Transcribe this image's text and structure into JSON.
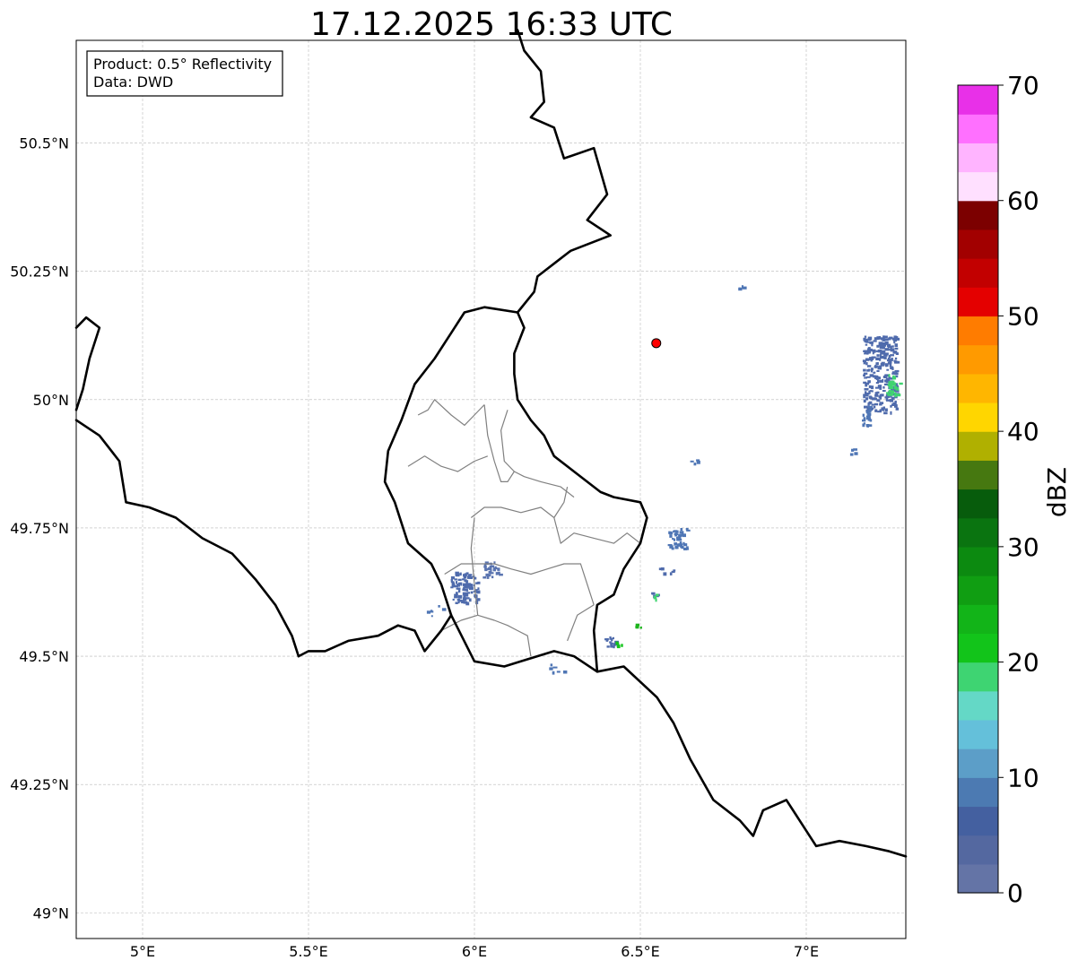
{
  "title": "17.12.2025 16:33 UTC",
  "info_box": {
    "product": "Product: 0.5° Reflectivity",
    "data_source": "Data: DWD"
  },
  "map": {
    "lon_range": [
      4.8,
      7.3
    ],
    "lat_range": [
      48.95,
      50.7
    ],
    "x_ticks": [
      {
        "value": 5.0,
        "label": "5°E"
      },
      {
        "value": 5.5,
        "label": "5.5°E"
      },
      {
        "value": 6.0,
        "label": "6°E"
      },
      {
        "value": 6.5,
        "label": "6.5°E"
      },
      {
        "value": 7.0,
        "label": "7°E"
      }
    ],
    "y_ticks": [
      {
        "value": 49.0,
        "label": "49°N"
      },
      {
        "value": 49.25,
        "label": "49.25°N"
      },
      {
        "value": 49.5,
        "label": "49.5°N"
      },
      {
        "value": 49.75,
        "label": "49.75°N"
      },
      {
        "value": 50.0,
        "label": "50°N"
      },
      {
        "value": 50.25,
        "label": "50.25°N"
      },
      {
        "value": 50.5,
        "label": "50.5°N"
      }
    ],
    "radar_site": {
      "lon": 6.548,
      "lat": 50.11,
      "color": "#ff0000"
    },
    "borders": [
      [
        [
          6.13,
          50.72
        ],
        [
          6.15,
          50.68
        ],
        [
          6.2,
          50.64
        ],
        [
          6.21,
          50.58
        ],
        [
          6.17,
          50.55
        ],
        [
          6.24,
          50.53
        ],
        [
          6.27,
          50.47
        ],
        [
          6.36,
          50.49
        ],
        [
          6.4,
          50.4
        ],
        [
          6.34,
          50.35
        ],
        [
          6.41,
          50.32
        ],
        [
          6.29,
          50.29
        ],
        [
          6.25,
          50.27
        ],
        [
          6.19,
          50.24
        ],
        [
          6.18,
          50.21
        ],
        [
          6.13,
          50.17
        ],
        [
          6.15,
          50.14
        ],
        [
          6.12,
          50.09
        ],
        [
          6.12,
          50.05
        ],
        [
          6.13,
          50.0
        ],
        [
          6.17,
          49.96
        ],
        [
          6.21,
          49.93
        ],
        [
          6.24,
          49.89
        ],
        [
          6.3,
          49.86
        ],
        [
          6.38,
          49.82
        ],
        [
          6.42,
          49.81
        ],
        [
          6.5,
          49.8
        ],
        [
          6.52,
          49.77
        ],
        [
          6.5,
          49.72
        ],
        [
          6.45,
          49.67
        ],
        [
          6.42,
          49.62
        ],
        [
          6.37,
          49.6
        ],
        [
          6.36,
          49.55
        ],
        [
          6.37,
          49.47
        ]
      ],
      [
        [
          6.13,
          50.17
        ],
        [
          6.03,
          50.18
        ],
        [
          5.97,
          50.17
        ],
        [
          5.93,
          50.13
        ],
        [
          5.88,
          50.08
        ],
        [
          5.82,
          50.03
        ],
        [
          5.78,
          49.96
        ],
        [
          5.74,
          49.9
        ],
        [
          5.73,
          49.84
        ],
        [
          5.76,
          49.8
        ],
        [
          5.8,
          49.72
        ],
        [
          5.87,
          49.68
        ],
        [
          5.9,
          49.64
        ],
        [
          5.93,
          49.58
        ],
        [
          5.9,
          49.55
        ],
        [
          5.85,
          49.51
        ],
        [
          5.82,
          49.55
        ],
        [
          5.77,
          49.56
        ],
        [
          5.71,
          49.54
        ],
        [
          5.62,
          49.53
        ],
        [
          5.55,
          49.51
        ],
        [
          5.5,
          49.51
        ],
        [
          5.47,
          49.5
        ]
      ],
      [
        [
          4.8,
          49.96
        ],
        [
          4.87,
          49.93
        ],
        [
          4.93,
          49.88
        ],
        [
          4.95,
          49.8
        ],
        [
          5.02,
          49.79
        ],
        [
          5.1,
          49.77
        ],
        [
          5.18,
          49.73
        ],
        [
          5.27,
          49.7
        ],
        [
          5.34,
          49.65
        ],
        [
          5.4,
          49.6
        ],
        [
          5.45,
          49.54
        ],
        [
          5.47,
          49.5
        ]
      ],
      [
        [
          4.8,
          50.14
        ],
        [
          4.83,
          50.16
        ],
        [
          4.87,
          50.14
        ],
        [
          4.84,
          50.08
        ],
        [
          4.82,
          50.02
        ],
        [
          4.8,
          49.98
        ]
      ],
      [
        [
          5.93,
          49.58
        ],
        [
          6.0,
          49.49
        ],
        [
          6.09,
          49.48
        ],
        [
          6.14,
          49.49
        ],
        [
          6.24,
          49.51
        ],
        [
          6.3,
          49.5
        ],
        [
          6.37,
          49.47
        ],
        [
          6.45,
          49.48
        ],
        [
          6.55,
          49.42
        ],
        [
          6.6,
          49.37
        ],
        [
          6.65,
          49.3
        ],
        [
          6.72,
          49.22
        ],
        [
          6.8,
          49.18
        ],
        [
          6.84,
          49.15
        ],
        [
          6.87,
          49.2
        ],
        [
          6.94,
          49.22
        ],
        [
          6.98,
          49.18
        ],
        [
          7.03,
          49.13
        ],
        [
          7.1,
          49.14
        ],
        [
          7.18,
          49.13
        ],
        [
          7.25,
          49.12
        ],
        [
          7.3,
          49.11
        ]
      ]
    ],
    "cantons": [
      [
        [
          6.03,
          49.99
        ],
        [
          6.0,
          49.97
        ],
        [
          5.97,
          49.95
        ],
        [
          5.93,
          49.97
        ],
        [
          5.88,
          50.0
        ],
        [
          5.86,
          49.98
        ],
        [
          5.83,
          49.97
        ]
      ],
      [
        [
          6.03,
          49.99
        ],
        [
          6.04,
          49.93
        ],
        [
          6.06,
          49.88
        ],
        [
          6.08,
          49.84
        ],
        [
          6.1,
          49.84
        ],
        [
          6.12,
          49.86
        ],
        [
          6.15,
          49.85
        ],
        [
          6.2,
          49.84
        ],
        [
          6.26,
          49.83
        ],
        [
          6.3,
          49.81
        ]
      ],
      [
        [
          6.1,
          49.98
        ],
        [
          6.08,
          49.94
        ],
        [
          6.09,
          49.88
        ],
        [
          6.12,
          49.86
        ]
      ],
      [
        [
          5.8,
          49.87
        ],
        [
          5.85,
          49.89
        ],
        [
          5.9,
          49.87
        ],
        [
          5.95,
          49.86
        ],
        [
          6.0,
          49.88
        ],
        [
          6.04,
          49.89
        ]
      ],
      [
        [
          5.99,
          49.77
        ],
        [
          6.03,
          49.79
        ],
        [
          6.08,
          49.79
        ],
        [
          6.14,
          49.78
        ],
        [
          6.2,
          49.79
        ],
        [
          6.24,
          49.77
        ],
        [
          6.27,
          49.8
        ],
        [
          6.28,
          49.83
        ]
      ],
      [
        [
          6.24,
          49.77
        ],
        [
          6.26,
          49.72
        ],
        [
          6.3,
          49.74
        ],
        [
          6.36,
          49.73
        ],
        [
          6.42,
          49.72
        ],
        [
          6.46,
          49.74
        ],
        [
          6.5,
          49.72
        ]
      ],
      [
        [
          6.0,
          49.77
        ],
        [
          5.99,
          49.71
        ],
        [
          6.0,
          49.64
        ],
        [
          6.01,
          49.58
        ]
      ],
      [
        [
          5.91,
          49.66
        ],
        [
          5.96,
          49.68
        ],
        [
          6.0,
          49.68
        ],
        [
          6.06,
          49.68
        ],
        [
          6.11,
          49.67
        ],
        [
          6.17,
          49.66
        ],
        [
          6.22,
          49.67
        ],
        [
          6.27,
          49.68
        ],
        [
          6.32,
          49.68
        ],
        [
          6.36,
          49.6
        ]
      ],
      [
        [
          6.36,
          49.6
        ],
        [
          6.31,
          49.58
        ],
        [
          6.28,
          49.53
        ]
      ],
      [
        [
          6.01,
          49.58
        ],
        [
          6.06,
          49.57
        ],
        [
          6.1,
          49.56
        ],
        [
          6.13,
          49.55
        ],
        [
          6.16,
          49.54
        ],
        [
          6.17,
          49.5
        ]
      ],
      [
        [
          5.9,
          49.55
        ],
        [
          5.96,
          49.57
        ],
        [
          6.01,
          49.58
        ]
      ]
    ],
    "echoes": [
      {
        "lon": 5.97,
        "lat": 49.635,
        "w": 0.085,
        "h": 0.06,
        "color": "#4f6bac",
        "shape": "rain"
      },
      {
        "lon": 6.05,
        "lat": 49.67,
        "w": 0.05,
        "h": 0.03,
        "color": "#5a74b0",
        "shape": "rain"
      },
      {
        "lon": 5.88,
        "lat": 49.59,
        "w": 0.05,
        "h": 0.02,
        "color": "#4f76b5",
        "shape": "streak"
      },
      {
        "lon": 6.61,
        "lat": 49.73,
        "w": 0.06,
        "h": 0.04,
        "color": "#4f76b5",
        "shape": "rain"
      },
      {
        "lon": 6.58,
        "lat": 49.67,
        "w": 0.05,
        "h": 0.015,
        "color": "#4f6bac",
        "shape": "streak"
      },
      {
        "lon": 6.53,
        "lat": 49.62,
        "w": 0.04,
        "h": 0.015,
        "color": "#4f6bac",
        "shape": "streak"
      },
      {
        "lon": 6.54,
        "lat": 49.617,
        "w": 0.02,
        "h": 0.01,
        "color": "#3fd470",
        "shape": "streak"
      },
      {
        "lon": 6.49,
        "lat": 49.56,
        "w": 0.02,
        "h": 0.008,
        "color": "#1db41d",
        "shape": "streak"
      },
      {
        "lon": 6.41,
        "lat": 49.53,
        "w": 0.05,
        "h": 0.02,
        "color": "#4f6bac",
        "shape": "rain"
      },
      {
        "lon": 6.43,
        "lat": 49.525,
        "w": 0.03,
        "h": 0.008,
        "color": "#12c41a",
        "shape": "streak"
      },
      {
        "lon": 6.25,
        "lat": 49.48,
        "w": 0.05,
        "h": 0.02,
        "color": "#4f76b5",
        "shape": "streak"
      },
      {
        "lon": 6.66,
        "lat": 49.88,
        "w": 0.02,
        "h": 0.008,
        "color": "#4f76b5",
        "shape": "streak"
      },
      {
        "lon": 6.8,
        "lat": 50.22,
        "w": 0.015,
        "h": 0.006,
        "color": "#4f76b5",
        "shape": "streak"
      },
      {
        "lon": 7.22,
        "lat": 50.05,
        "w": 0.1,
        "h": 0.15,
        "color": "#4f6bac",
        "shape": "rain"
      },
      {
        "lon": 7.26,
        "lat": 50.03,
        "w": 0.04,
        "h": 0.04,
        "color": "#3fd470",
        "shape": "rain"
      },
      {
        "lon": 7.18,
        "lat": 49.97,
        "w": 0.03,
        "h": 0.04,
        "color": "#4f76b5",
        "shape": "rain"
      },
      {
        "lon": 7.14,
        "lat": 49.9,
        "w": 0.02,
        "h": 0.01,
        "color": "#4f76b5",
        "shape": "streak"
      }
    ]
  },
  "colorbar": {
    "label": "dBZ",
    "min": 0,
    "max": 70,
    "step": 2.5,
    "colors": [
      "#6474a6",
      "#5468a0",
      "#4460a0",
      "#4c7ab2",
      "#5c9ec8",
      "#64c0da",
      "#64d8c6",
      "#3ed472",
      "#12c41a",
      "#12b418",
      "#109e12",
      "#0c8a10",
      "#0a7410",
      "#075c0c",
      "#467810",
      "#b0b000",
      "#ffd600",
      "#ffb600",
      "#ff9a00",
      "#ff7c00",
      "#e40000",
      "#c20000",
      "#a20000",
      "#7c0000",
      "#ffe0ff",
      "#ffb4ff",
      "#ff70ff",
      "#e830e8"
    ],
    "ticks": [
      {
        "value": 0,
        "label": "0"
      },
      {
        "value": 10,
        "label": "10"
      },
      {
        "value": 20,
        "label": "20"
      },
      {
        "value": 30,
        "label": "30"
      },
      {
        "value": 40,
        "label": "40"
      },
      {
        "value": 50,
        "label": "50"
      },
      {
        "value": 60,
        "label": "60"
      },
      {
        "value": 70,
        "label": "70"
      }
    ]
  }
}
